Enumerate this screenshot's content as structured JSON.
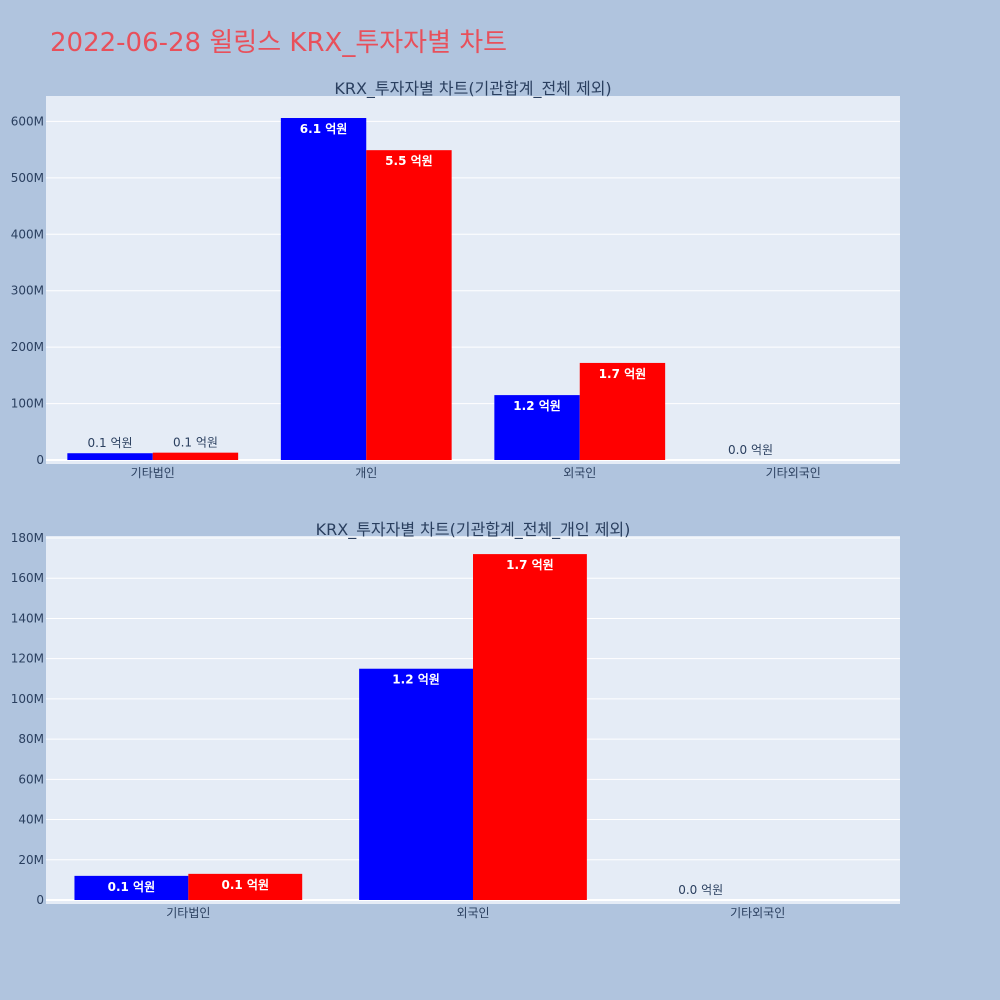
{
  "header": {
    "title": "2022-06-28 윌링스 KRX_투자자별 차트"
  },
  "colors": {
    "background": "#b0c4de",
    "plot_bg": "#e5ecf6",
    "title": "#e8505b",
    "series_a": "#0000ff",
    "series_b": "#ff0000"
  },
  "chart_data": [
    {
      "type": "bar",
      "title": "KRX_투자자별 차트(기관합계_전체 제외)",
      "categories": [
        "기타법인",
        "개인",
        "외국인",
        "기타외국인"
      ],
      "series": [
        {
          "color": "#0000ff",
          "values": [
            12000000,
            606000000,
            115000000,
            0
          ],
          "labels": [
            "0.1 억원",
            "6.1 억원",
            "1.2 억원",
            "0.0 억원"
          ]
        },
        {
          "color": "#ff0000",
          "values": [
            13000000,
            549000000,
            172000000,
            0
          ],
          "labels": [
            "0.1 억원",
            "5.5 억원",
            "1.7 억원",
            ""
          ]
        }
      ],
      "yticks": [
        0,
        100000000,
        200000000,
        300000000,
        400000000,
        500000000,
        600000000
      ],
      "ytick_labels": [
        "0",
        "100M",
        "200M",
        "300M",
        "400M",
        "500M",
        "600M"
      ],
      "ylim": [
        0,
        645000000
      ],
      "grid": true
    },
    {
      "type": "bar",
      "title": "KRX_투자자별 차트(기관합계_전체_개인 제외)",
      "categories": [
        "기타법인",
        "외국인",
        "기타외국인"
      ],
      "series": [
        {
          "color": "#0000ff",
          "values": [
            12000000,
            115000000,
            0
          ],
          "labels": [
            "0.1 억원",
            "1.2 억원",
            "0.0 억원"
          ]
        },
        {
          "color": "#ff0000",
          "values": [
            13000000,
            172000000,
            0
          ],
          "labels": [
            "0.1 억원",
            "1.7 억원",
            ""
          ]
        }
      ],
      "yticks": [
        0,
        20000000,
        40000000,
        60000000,
        80000000,
        100000000,
        120000000,
        140000000,
        160000000,
        180000000
      ],
      "ytick_labels": [
        "0",
        "20M",
        "40M",
        "60M",
        "80M",
        "100M",
        "120M",
        "140M",
        "160M",
        "180M"
      ],
      "ylim": [
        0,
        181000000
      ],
      "grid": true
    }
  ]
}
